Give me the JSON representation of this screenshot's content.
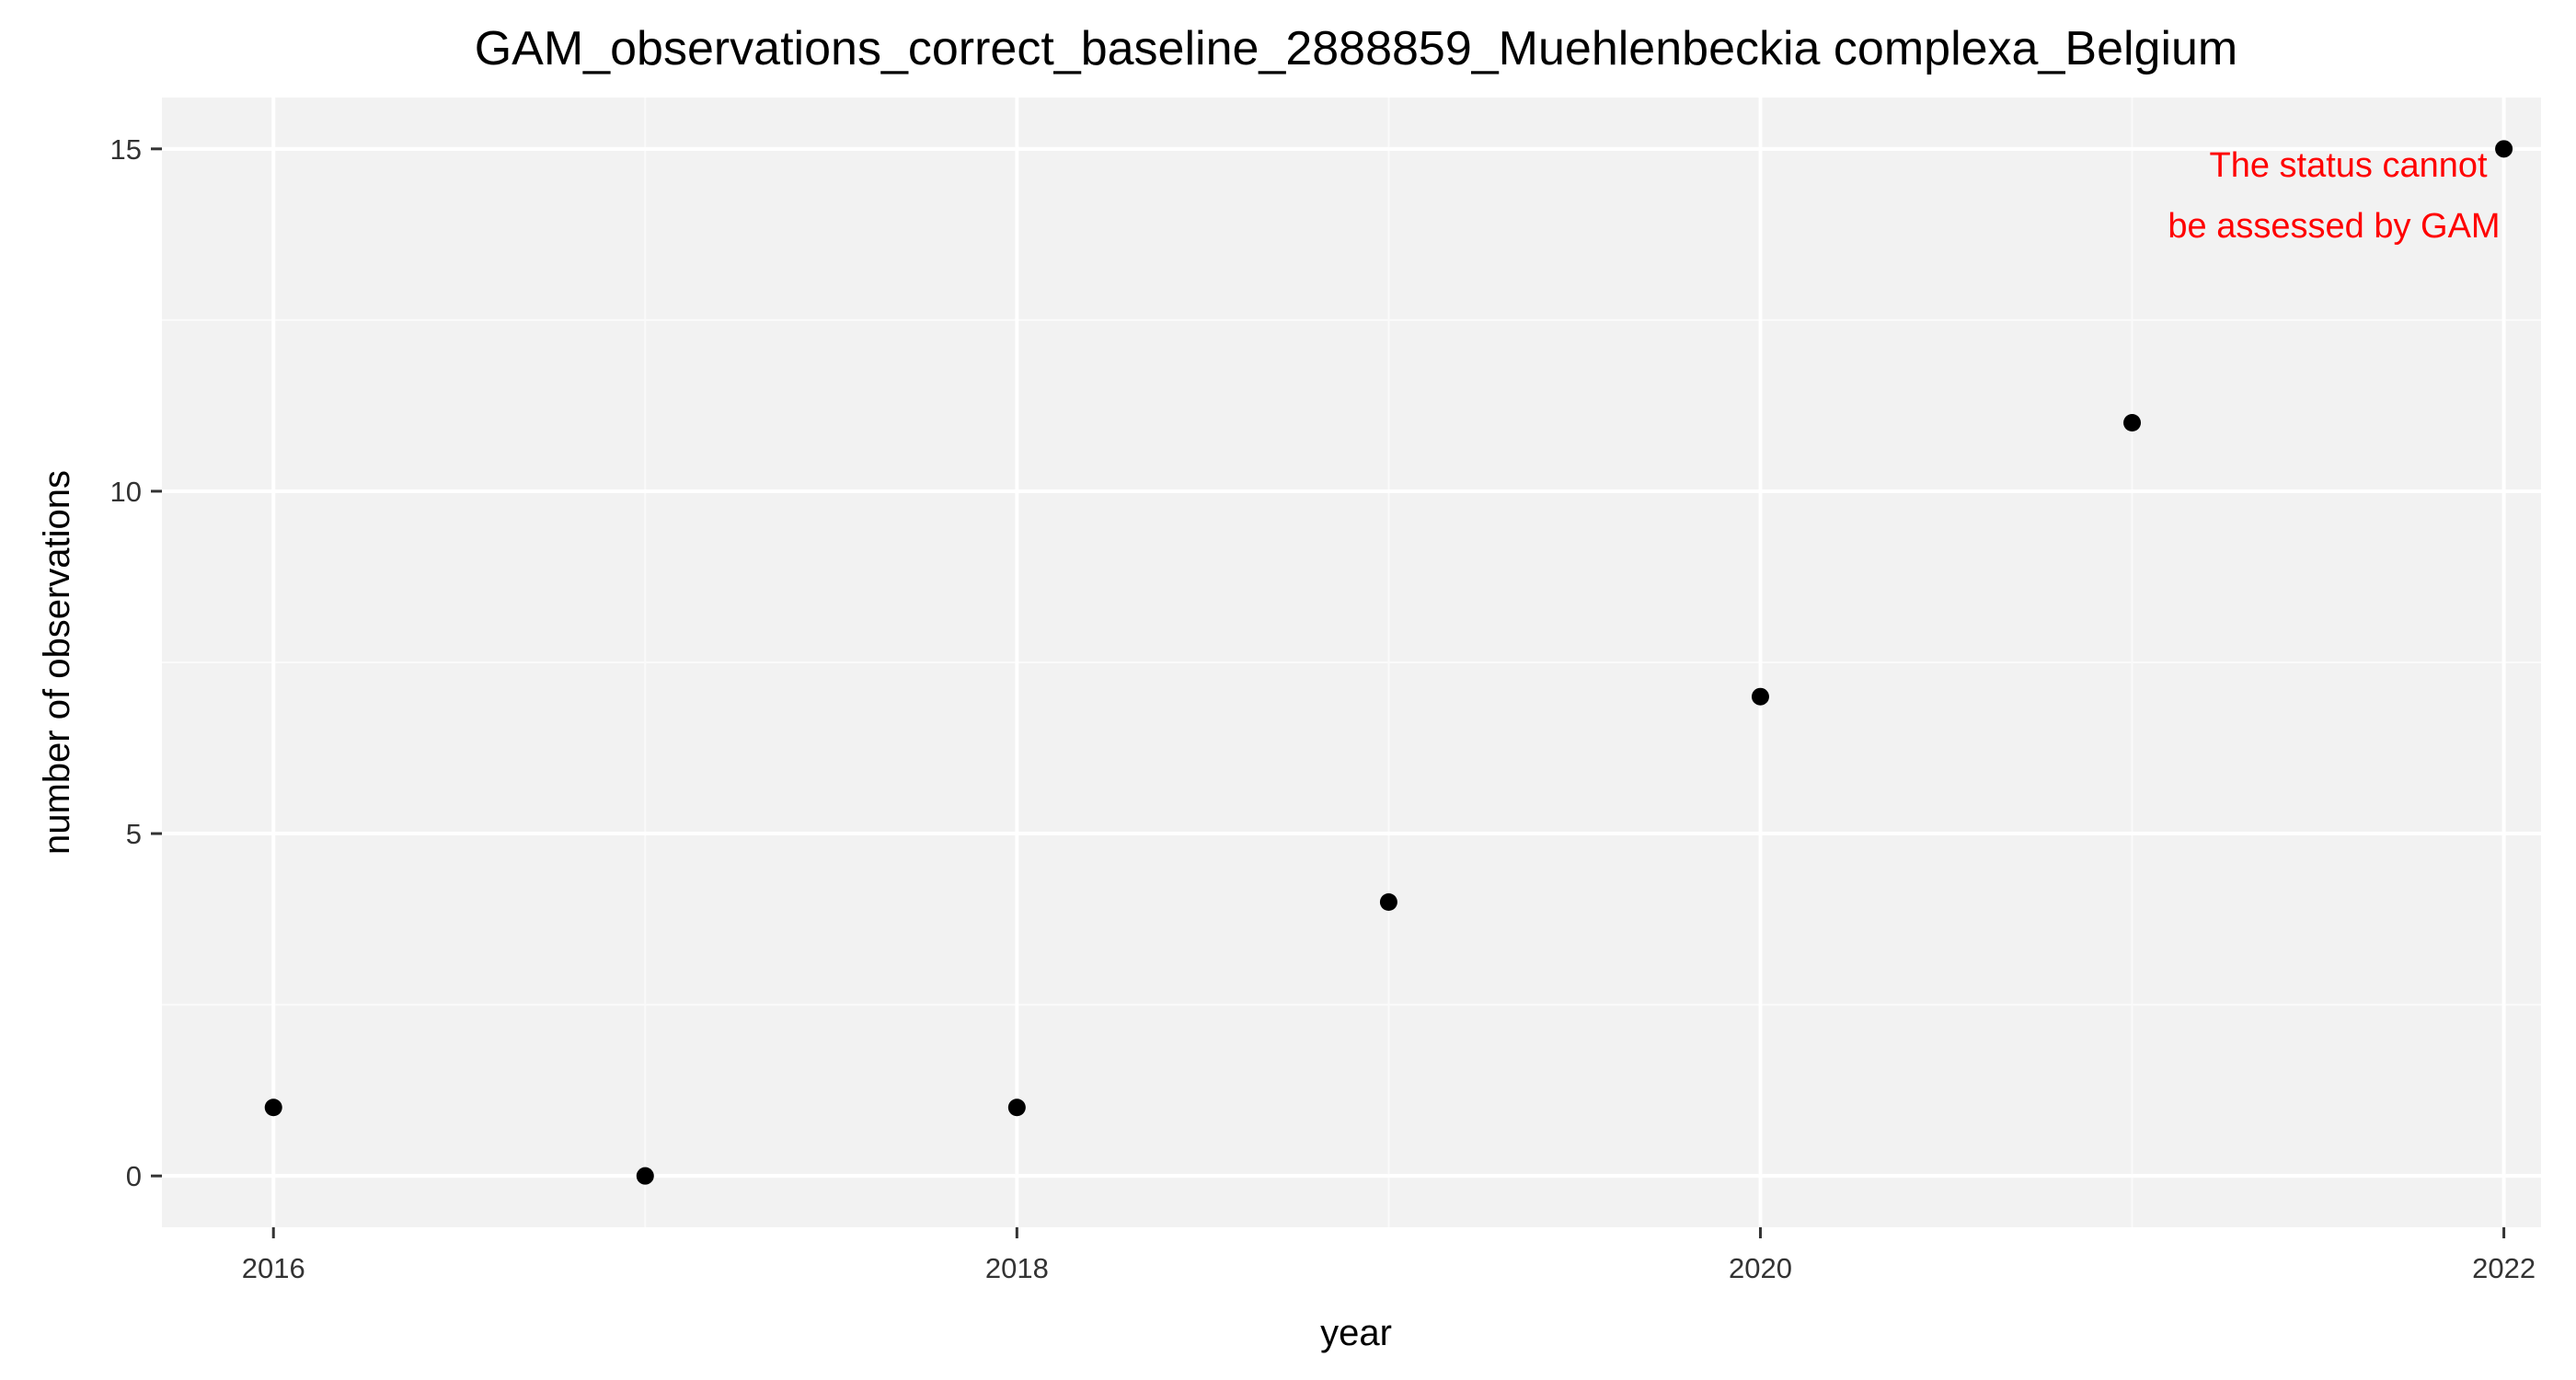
{
  "chart_data": {
    "type": "scatter",
    "title": "GAM_observations_correct_baseline_2888859_Muehlenbeckia complexa_Belgium",
    "xlabel": "year",
    "ylabel": "number of observations",
    "x": [
      2016,
      2017,
      2018,
      2019,
      2020,
      2021,
      2022
    ],
    "y": [
      1,
      0,
      1,
      4,
      7,
      11,
      15
    ],
    "xlim": [
      2015.7,
      2022.1
    ],
    "ylim": [
      -0.75,
      15.75
    ],
    "x_ticks": [
      2016,
      2018,
      2020,
      2022
    ],
    "y_ticks": [
      0,
      5,
      10,
      15
    ],
    "x_tick_labels": [
      "2016",
      "2018",
      "2020",
      "2022"
    ],
    "y_tick_labels": [
      "0",
      "5",
      "10",
      "15"
    ],
    "grid": true,
    "legend": "none",
    "annotation": {
      "lines": [
        "The status cannot",
        "be assessed by GAM"
      ],
      "x": 2022,
      "y": 15,
      "color": "#ff0000"
    },
    "colors": {
      "panel_background": "#f2f2f2",
      "grid_major": "#ffffff",
      "grid_minor": "#fafafa",
      "point": "#000000",
      "tick": "#333333"
    }
  }
}
